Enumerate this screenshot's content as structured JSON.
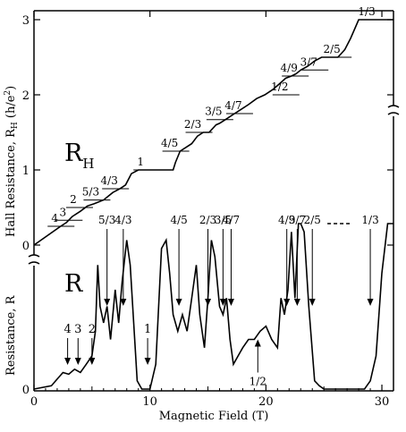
{
  "chart_data": {
    "type": "line",
    "title": "",
    "xlabel": "Magnetic Field (T)",
    "ylabel_top": "Hall Resistance, Rₕ (h/e²)",
    "ylabel_top_main": "Hall Resistance, R",
    "ylabel_top_sub": "H",
    "ylabel_top_unit": " (h/e",
    "ylabel_top_unit_exp": "2",
    "ylabel_top_unit_close": ")",
    "ylabel_bottom": "Resistance, R",
    "xlim": [
      0,
      31
    ],
    "x_ticks": [
      0,
      10,
      20,
      30
    ],
    "ylim_hall": [
      0,
      3.1
    ],
    "y_ticks_hall": [
      0,
      1,
      2,
      3
    ],
    "y_ticks_bottom": [
      0
    ],
    "grid": false,
    "panel_labels": {
      "hall_main": "R",
      "hall_sub": "H",
      "resistance": "R"
    },
    "series": [
      {
        "name": "R_H",
        "x": [
          0,
          2.3,
          2.8,
          3.3,
          4.0,
          4.6,
          5.2,
          6.0,
          6.8,
          7.4,
          7.9,
          8.4,
          9.0,
          9.5,
          10.0,
          10.5,
          11.0,
          11.5,
          12.0,
          12.2,
          12.6,
          13.1,
          13.6,
          14.1,
          14.6,
          15.1,
          15.4,
          15.7,
          16.0,
          16.3,
          16.8,
          17.3,
          17.8,
          18.5,
          19.2,
          19.9,
          20.6,
          21.2,
          21.7,
          22.2,
          22.6,
          23.0,
          23.6,
          24.2,
          24.8,
          25.3,
          25.7,
          26.2,
          26.8,
          27.3,
          28.0,
          29.0,
          30.0,
          31.0
        ],
        "y": [
          0,
          0.25,
          0.3,
          0.38,
          0.45,
          0.52,
          0.55,
          0.6,
          0.7,
          0.75,
          0.8,
          0.95,
          1.0,
          1.0,
          1.0,
          1.0,
          1.0,
          1.0,
          1.0,
          1.1,
          1.25,
          1.3,
          1.35,
          1.45,
          1.5,
          1.5,
          1.55,
          1.6,
          1.62,
          1.65,
          1.7,
          1.75,
          1.8,
          1.87,
          1.95,
          2.0,
          2.07,
          2.15,
          2.22,
          2.25,
          2.28,
          2.33,
          2.38,
          2.45,
          2.5,
          2.5,
          2.5,
          2.5,
          2.6,
          2.75,
          3.0,
          3.0,
          3.0,
          3.0
        ]
      },
      {
        "name": "R",
        "x": [
          0,
          1.5,
          2.0,
          2.5,
          3.0,
          3.5,
          4.0,
          4.5,
          5.0,
          5.3,
          5.5,
          5.7,
          6.0,
          6.3,
          6.6,
          7.0,
          7.3,
          7.6,
          8.0,
          8.3,
          8.6,
          8.9,
          9.3,
          10.0,
          10.5,
          11.0,
          11.4,
          11.7,
          12.0,
          12.4,
          12.8,
          13.2,
          13.6,
          14.0,
          14.3,
          14.7,
          15.0,
          15.3,
          15.6,
          16.0,
          16.3,
          16.6,
          16.9,
          17.2,
          17.6,
          18.0,
          18.5,
          19.0,
          19.5,
          20.0,
          20.5,
          21.0,
          21.3,
          21.6,
          21.9,
          22.2,
          22.5,
          22.8,
          23.0,
          23.3,
          23.7,
          24.2,
          24.6,
          25.0,
          25.4,
          26.0,
          26.6,
          27.0,
          27.5,
          28.0,
          28.5,
          29.0,
          29.5,
          30.0,
          30.5,
          31.0
        ],
        "y": [
          0.0,
          0.02,
          0.06,
          0.1,
          0.09,
          0.12,
          0.1,
          0.15,
          0.2,
          0.35,
          0.75,
          0.5,
          0.4,
          0.5,
          0.3,
          0.6,
          0.4,
          0.65,
          0.9,
          0.75,
          0.4,
          0.05,
          0.0,
          0.0,
          0.15,
          0.85,
          0.9,
          0.7,
          0.45,
          0.35,
          0.45,
          0.35,
          0.55,
          0.75,
          0.45,
          0.25,
          0.55,
          0.9,
          0.8,
          0.5,
          0.45,
          0.55,
          0.3,
          0.15,
          0.2,
          0.25,
          0.3,
          0.3,
          0.35,
          0.38,
          0.3,
          0.25,
          0.55,
          0.45,
          0.6,
          0.95,
          0.55,
          1.0,
          1.0,
          0.95,
          0.5,
          0.05,
          0.02,
          0.0,
          0.0,
          0.0,
          0.0,
          0.0,
          0.0,
          0.0,
          0.0,
          0.05,
          0.2,
          0.7,
          1.0,
          1.0
        ]
      }
    ],
    "plateau_labels": [
      {
        "text": "1/3",
        "x": 29.0,
        "y": 3.0
      },
      {
        "text": "2/5",
        "x": 26.0,
        "y": 2.5
      },
      {
        "text": "3/7",
        "x": 24.0,
        "y": 2.33
      },
      {
        "text": "4/9",
        "x": 22.3,
        "y": 2.25
      },
      {
        "text": "1/2",
        "x": 21.5,
        "y": 2.0
      },
      {
        "text": "4/7",
        "x": 17.5,
        "y": 1.75
      },
      {
        "text": "3/5",
        "x": 15.8,
        "y": 1.67
      },
      {
        "text": "2/3",
        "x": 14.0,
        "y": 1.5
      },
      {
        "text": "4/5",
        "x": 12.0,
        "y": 1.25
      },
      {
        "text": "1",
        "x": 9.5,
        "y": 1.0
      },
      {
        "text": "4/3",
        "x": 6.8,
        "y": 0.75
      },
      {
        "text": "5/3",
        "x": 5.2,
        "y": 0.6
      },
      {
        "text": "2",
        "x": 3.7,
        "y": 0.5
      },
      {
        "text": "3",
        "x": 2.8,
        "y": 0.33
      },
      {
        "text": "4",
        "x": 2.1,
        "y": 0.25
      }
    ],
    "arrow_labels": [
      {
        "text": "1/3",
        "x": 29.0
      },
      {
        "text": "2/5",
        "x": 24.0
      },
      {
        "text": "3/7",
        "x": 22.7
      },
      {
        "text": "4/9",
        "x": 21.8
      },
      {
        "text": "4/7",
        "x": 17.0
      },
      {
        "text": "3/5",
        "x": 16.3
      },
      {
        "text": "2/3",
        "x": 15.0
      },
      {
        "text": "4/5",
        "x": 12.5
      },
      {
        "text": "1",
        "x": 9.8
      },
      {
        "text": "4/3",
        "x": 7.7
      },
      {
        "text": "5/3",
        "x": 6.3
      },
      {
        "text": "2",
        "x": 5.0
      },
      {
        "text": "3",
        "x": 3.8
      },
      {
        "text": "4",
        "x": 2.9
      },
      {
        "text": "1/2",
        "x": 19.3
      }
    ]
  }
}
